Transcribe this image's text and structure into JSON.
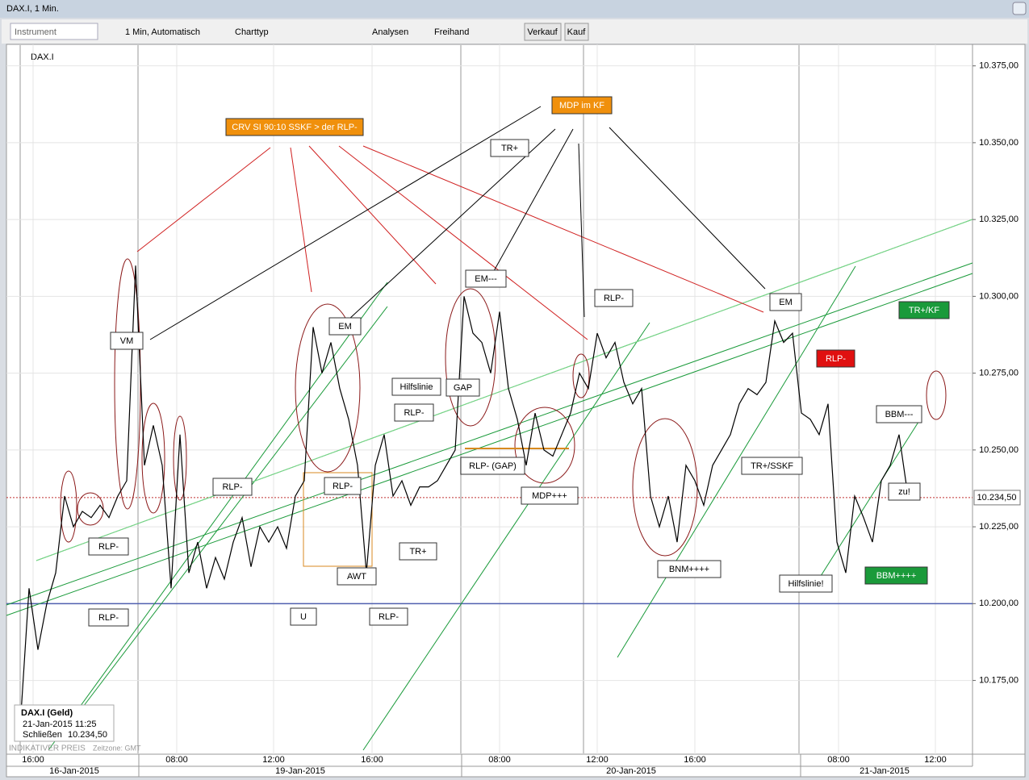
{
  "window": {
    "title": "DAX.I, 1 Min."
  },
  "toolbar": {
    "instrument": "Instrument",
    "interval": "1 Min, Automatisch",
    "chart_type": "Charttyp",
    "analyses": "Analysen",
    "freehand": "Freihand",
    "sell": "Verkauf",
    "buy": "Kauf"
  },
  "chart_data": {
    "type": "line",
    "instrument": "DAX.I",
    "color": "#000000",
    "values": [
      10160,
      10205,
      10185,
      10200,
      10210,
      10235,
      10225,
      10230,
      10228,
      10232,
      10228,
      10235,
      10240,
      10310,
      10245,
      10258,
      10245,
      10205,
      10255,
      10210,
      10220,
      10205,
      10215,
      10208,
      10220,
      10228,
      10212,
      10225,
      10220,
      10225,
      10218,
      10235,
      10240,
      10290,
      10275,
      10285,
      10270,
      10260,
      10245,
      10210,
      10245,
      10255,
      10235,
      10240,
      10232,
      10238,
      10238,
      10240,
      10245,
      10250,
      10300,
      10288,
      10285,
      10275,
      10295,
      10270,
      10260,
      10245,
      10262,
      10250,
      10248,
      10255,
      10262,
      10275,
      10270,
      10288,
      10280,
      10285,
      10272,
      10265,
      10270,
      10235,
      10225,
      10235,
      10220,
      10245,
      10240,
      10232,
      10245,
      10250,
      10255,
      10265,
      10270,
      10268,
      10272,
      10292,
      10285,
      10288,
      10262,
      10260,
      10255,
      10265,
      10220,
      10210,
      10235,
      10228,
      10220,
      10240,
      10245,
      10255,
      10235
    ],
    "ylim": [
      10151,
      10382
    ],
    "yticks": [
      {
        "value": 10175,
        "label": "10.175,00"
      },
      {
        "value": 10200,
        "label": "10.200,00"
      },
      {
        "value": 10225,
        "label": "10.225,00"
      },
      {
        "value": 10250,
        "label": "10.250,00"
      },
      {
        "value": 10275,
        "label": "10.275,00"
      },
      {
        "value": 10300,
        "label": "10.300,00"
      },
      {
        "value": 10325,
        "label": "10.325,00"
      },
      {
        "value": 10350,
        "label": "10.350,00"
      },
      {
        "value": 10375,
        "label": "10.375,00"
      }
    ],
    "last": {
      "value": 10234.5,
      "label": "10.234,50"
    },
    "time_labels": [
      "16:00",
      "08:00",
      "12:00",
      "16:00",
      "08:00",
      "12:00",
      "16:00",
      "08:00",
      "12:00"
    ],
    "date_labels": [
      "16-Jan-2015",
      "19-Jan-2015",
      "20-Jan-2015",
      "21-Jan-2015"
    ],
    "info": {
      "name": "DAX.I (Geld)",
      "time": "21-Jan-2015 11:25",
      "close": "Schließen"
    },
    "footer": [
      "INDIKATIVER PREIS",
      "Zeitzone: GMT"
    ],
    "annotations": [
      {
        "text": "CRV SI 90:10 SSKF > der RLP-",
        "fill": "#f0900c"
      },
      {
        "text": "MDP im KF",
        "fill": "#f0900c"
      },
      {
        "text": "TR+",
        "fill": "#ffffff"
      },
      {
        "text": "VM",
        "fill": "#ffffff"
      },
      {
        "text": "EM---",
        "fill": "#ffffff"
      },
      {
        "text": "RLP-",
        "fill": "#ffffff"
      },
      {
        "text": "EM",
        "fill": "#ffffff"
      },
      {
        "text": "EM",
        "fill": "#ffffff"
      },
      {
        "text": "TR+/KF",
        "fill": "#1a9a3a"
      },
      {
        "text": "RLP-",
        "fill": "#e01010"
      },
      {
        "text": "Hilfslinie",
        "fill": "#ffffff"
      },
      {
        "text": "GAP",
        "fill": "#ffffff"
      },
      {
        "text": "RLP-",
        "fill": "#ffffff"
      },
      {
        "text": "BBM---",
        "fill": "#ffffff"
      },
      {
        "text": "RLP-",
        "fill": "#ffffff"
      },
      {
        "text": "RLP-",
        "fill": "#ffffff"
      },
      {
        "text": "RLP- (GAP)",
        "fill": "#ffffff"
      },
      {
        "text": "TR+/SSKF",
        "fill": "#ffffff"
      },
      {
        "text": "MDP+++",
        "fill": "#ffffff"
      },
      {
        "text": "zu!",
        "fill": "#ffffff"
      },
      {
        "text": "RLP-",
        "fill": "#ffffff"
      },
      {
        "text": "TR+",
        "fill": "#ffffff"
      },
      {
        "text": "BNM++++",
        "fill": "#ffffff"
      },
      {
        "text": "AWT",
        "fill": "#ffffff"
      },
      {
        "text": "Hilfslinie!",
        "fill": "#ffffff"
      },
      {
        "text": "BBM++++",
        "fill": "#1a9a3a"
      },
      {
        "text": "RLP-",
        "fill": "#ffffff"
      },
      {
        "text": "U",
        "fill": "#ffffff"
      },
      {
        "text": "RLP-",
        "fill": "#ffffff"
      }
    ]
  }
}
